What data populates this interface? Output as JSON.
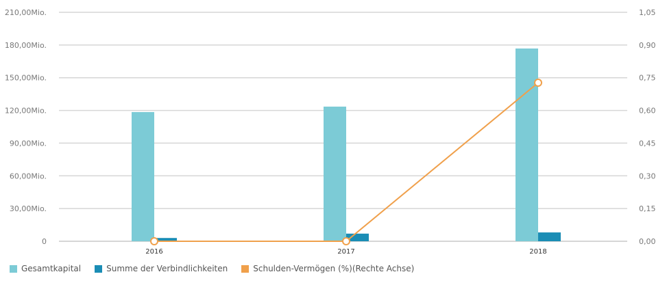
{
  "chart_data": {
    "type": "bar",
    "categories": [
      "2016",
      "2017",
      "2018"
    ],
    "series": [
      {
        "name": "Gesamtkapital",
        "type": "bar",
        "axis": "left",
        "color": "#7ccbd6",
        "values": [
          118500000,
          123500000,
          176800000
        ]
      },
      {
        "name": "Summe der Verbindlichkeiten",
        "type": "bar",
        "axis": "left",
        "color": "#1b8db5",
        "values": [
          3000000,
          7000000,
          8100000
        ]
      },
      {
        "name": "Schulden-Vermögen (%)(Rechte Achse)",
        "type": "line",
        "axis": "right",
        "color": "#f0a04b",
        "values": [
          0,
          0,
          0.727
        ]
      }
    ],
    "left_axis": {
      "ylim": [
        0,
        210000000
      ],
      "ticks": [
        "0",
        "30,00Mio.",
        "60,00Mio.",
        "90,00Mio.",
        "120,00Mio.",
        "150,00Mio.",
        "180,00Mio.",
        "210,00Mio."
      ]
    },
    "right_axis": {
      "ylim": [
        0,
        1.05
      ],
      "ticks": [
        "0,00",
        "0,15",
        "0,30",
        "0,45",
        "0,60",
        "0,75",
        "0,90",
        "1,05"
      ]
    },
    "grid": true,
    "legend": "bottom-left"
  }
}
